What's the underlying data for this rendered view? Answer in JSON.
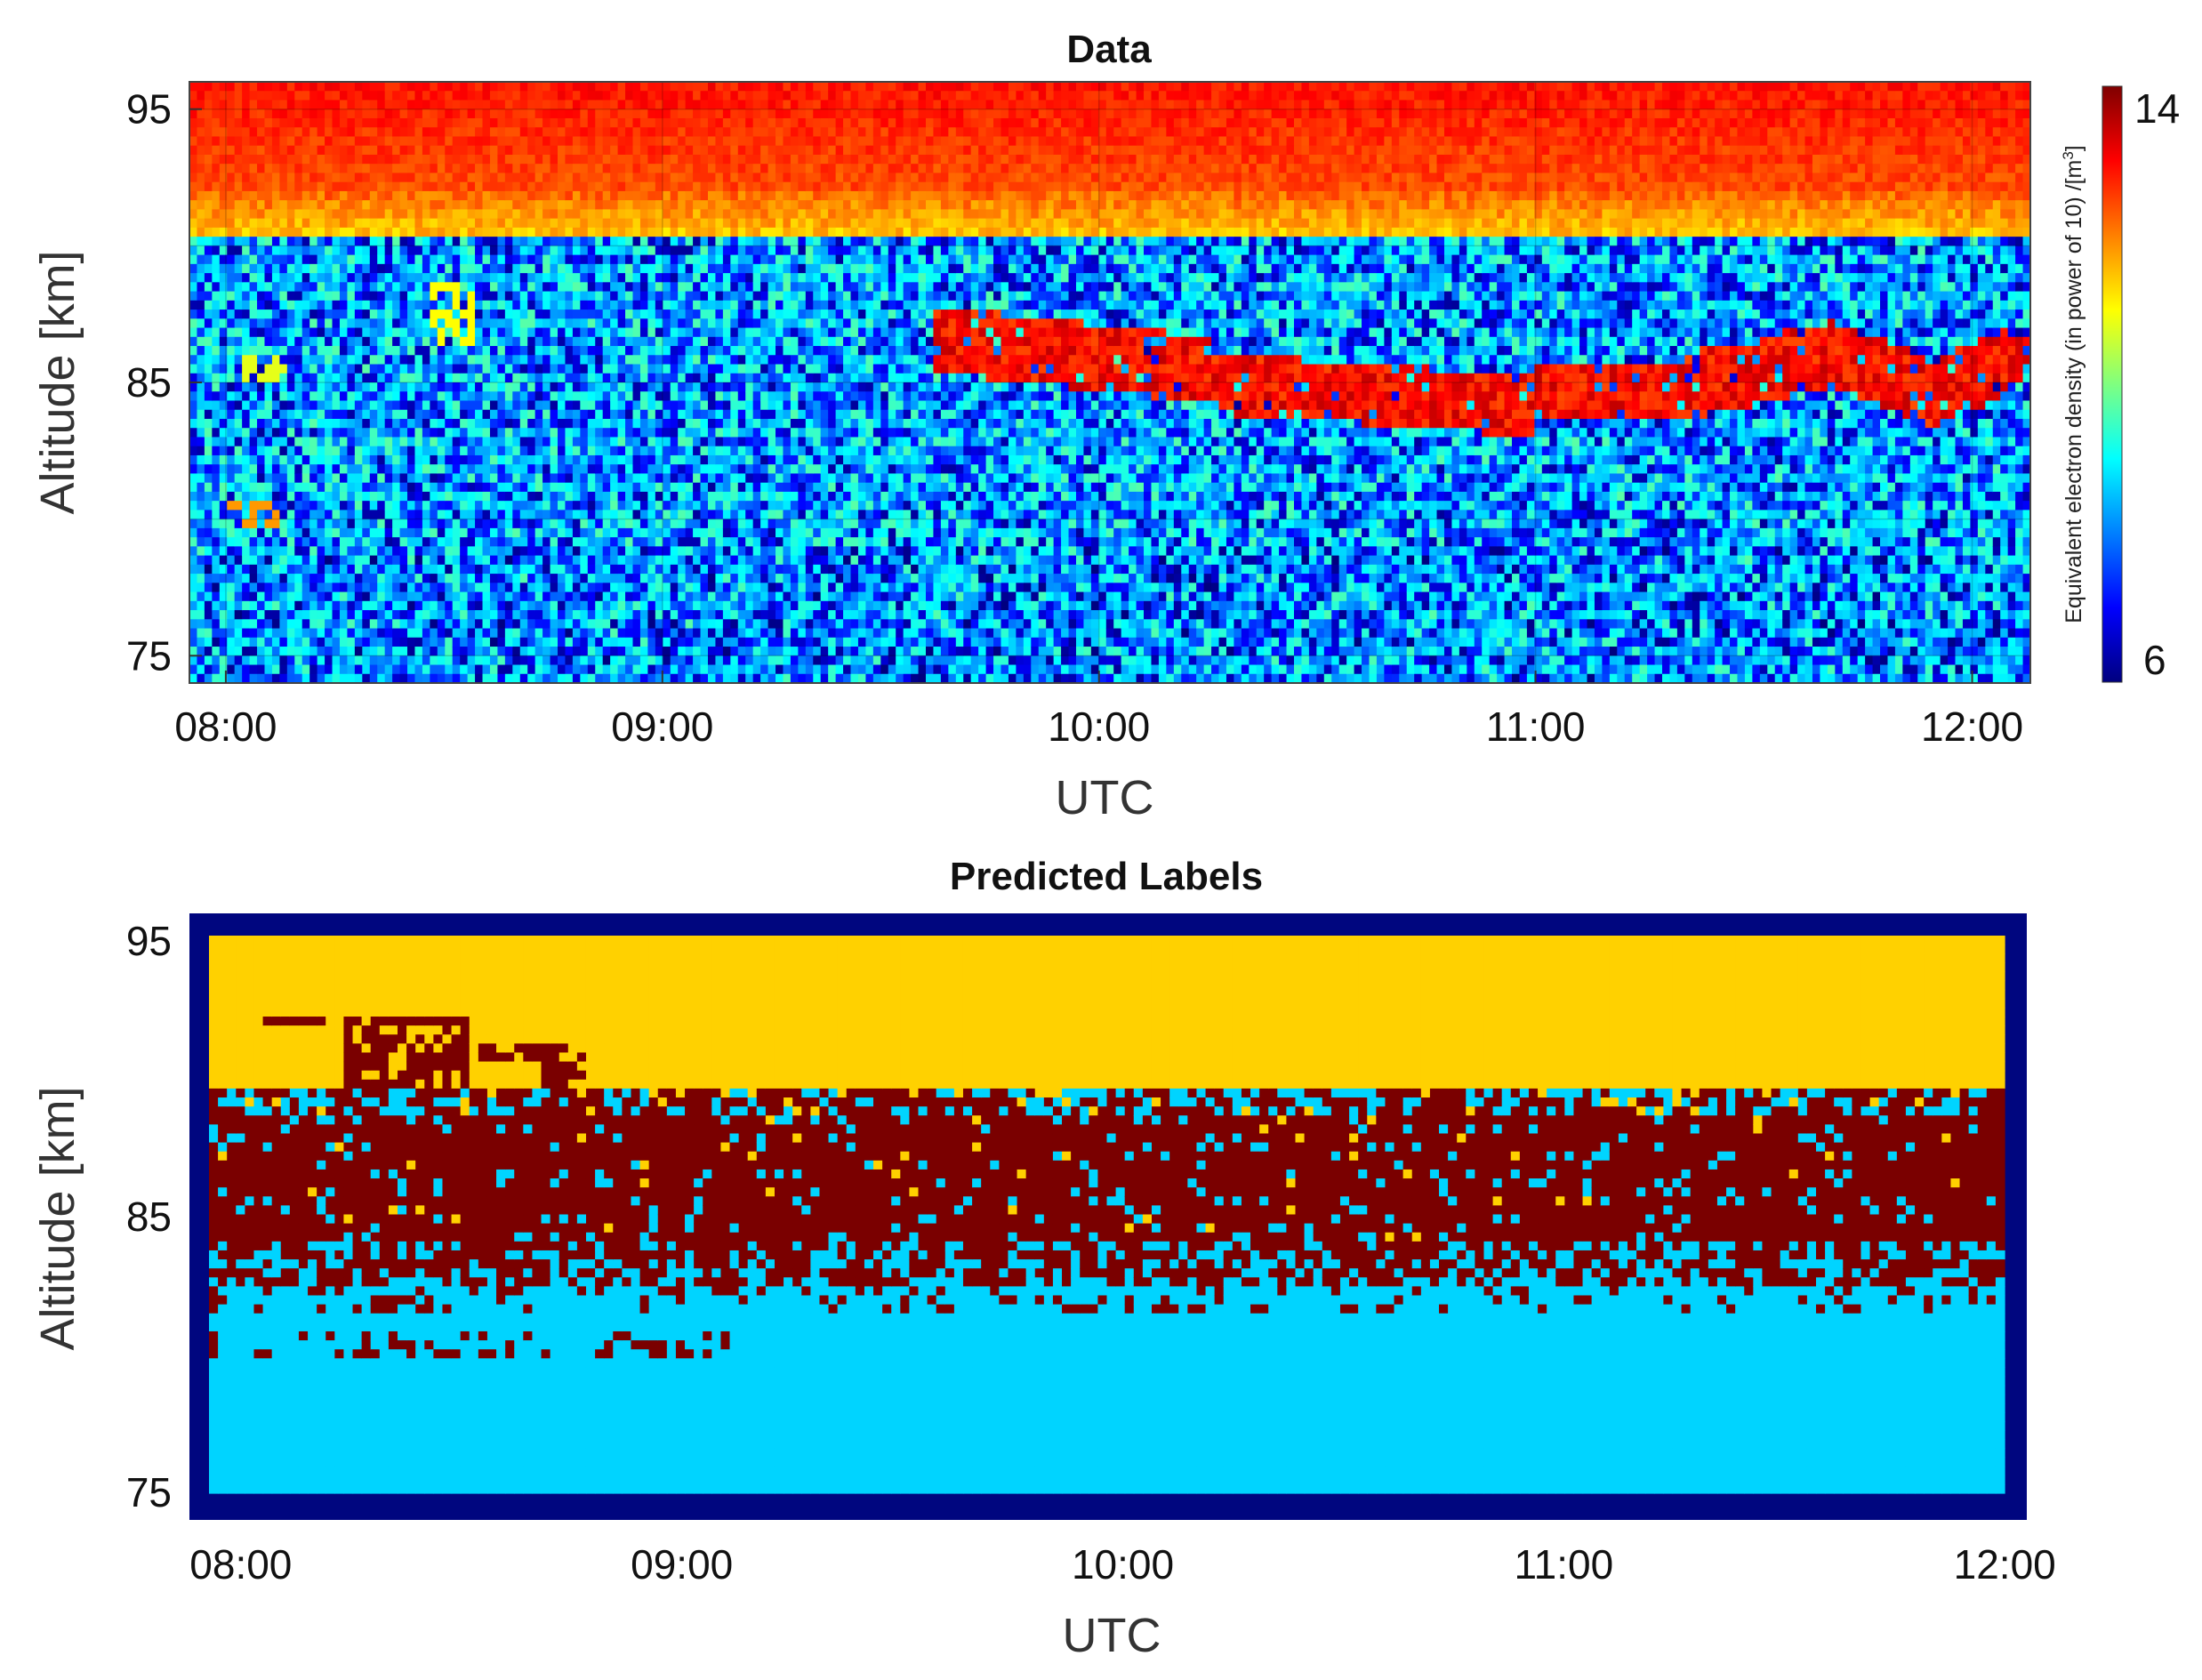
{
  "chart_data": [
    {
      "type": "heatmap",
      "title": "Data",
      "xlabel": "UTC",
      "ylabel": "Altitude [km]",
      "x_ticks": [
        "08:00",
        "09:00",
        "10:00",
        "11:00",
        "12:00"
      ],
      "y_ticks": [
        "95",
        "85",
        "75"
      ],
      "xlim": [
        "07:55",
        "12:08"
      ],
      "ylim": [
        74,
        96
      ],
      "grid": true,
      "colormap": "jet",
      "colorbar": {
        "label": "Equivalent electron density (in power of 10) /[m",
        "label_superscript": "3",
        "label_close": "]",
        "min_label": "6",
        "max_label": "14",
        "range": [
          6,
          14
        ]
      },
      "features": [
        {
          "region": "altitude >= 90.5 km",
          "value_range": [
            11.5,
            13.0
          ],
          "note": "high density top layer"
        },
        {
          "region": "75–90 km",
          "value_range": [
            6,
            10
          ],
          "note": "noisy background"
        },
        {
          "region": "10:00–10:15 UTC, 85–88 km",
          "value_range": [
            12.5,
            13.5
          ],
          "note": "echo layer"
        },
        {
          "region": "10:15–11:00 UTC, 83.5–86 km",
          "value_range": [
            12.5,
            13.5
          ],
          "note": "echo layer"
        },
        {
          "region": "11:00–11:45 UTC, 84–87 km",
          "value_range": [
            12.5,
            13.5
          ],
          "note": "echo layer"
        }
      ]
    },
    {
      "type": "heatmap",
      "title": "Predicted Labels",
      "xlabel": "UTC",
      "ylabel": "Altitude [km]",
      "x_ticks": [
        "08:00",
        "09:00",
        "10:00",
        "11:00",
        "12:00"
      ],
      "y_ticks": [
        "95",
        "85",
        "75"
      ],
      "xlim": [
        "07:53",
        "12:03"
      ],
      "ylim": [
        74,
        96
      ],
      "grid": false,
      "classes": [
        {
          "color": "#FFD100",
          "region": "above ~89.5 km"
        },
        {
          "color": "#7A0000",
          "region": "~82.5–89.5 km"
        },
        {
          "color": "#00D4FF",
          "region": "below ~82.5 km"
        },
        {
          "color": "#00067F",
          "region": "border"
        }
      ]
    }
  ],
  "colors": {
    "label_top": "#FFD100",
    "label_mid": "#7A0000",
    "label_bottom": "#00D4FF",
    "label_border": "#00067F"
  }
}
